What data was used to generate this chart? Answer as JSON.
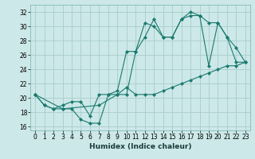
{
  "xlabel": "Humidex (Indice chaleur)",
  "ylabel": "",
  "xlim": [
    -0.5,
    23.5
  ],
  "ylim": [
    15.5,
    33
  ],
  "yticks": [
    16,
    18,
    20,
    22,
    24,
    26,
    28,
    30,
    32
  ],
  "xticks": [
    0,
    1,
    2,
    3,
    4,
    5,
    6,
    7,
    8,
    9,
    10,
    11,
    12,
    13,
    14,
    15,
    16,
    17,
    18,
    19,
    20,
    21,
    22,
    23
  ],
  "background_color": "#cce8e8",
  "grid_color": "#aacccc",
  "line_color": "#1a7a6e",
  "series": [
    {
      "x": [
        0,
        1,
        2,
        3,
        4,
        5,
        6,
        7,
        8,
        9,
        10,
        11,
        12,
        13,
        14,
        15,
        16,
        17,
        18,
        19,
        20,
        21,
        22,
        23
      ],
      "y": [
        20.5,
        19.0,
        18.5,
        19.0,
        19.5,
        19.5,
        17.5,
        20.5,
        20.5,
        21.0,
        26.5,
        26.5,
        28.5,
        31.0,
        28.5,
        28.5,
        31.0,
        31.5,
        31.5,
        30.5,
        30.5,
        28.5,
        25.0,
        25.0
      ]
    },
    {
      "x": [
        0,
        1,
        2,
        3,
        4,
        5,
        6,
        7,
        8,
        9,
        10,
        11,
        12,
        13,
        14,
        15,
        16,
        17,
        18,
        19,
        20,
        21,
        22,
        23
      ],
      "y": [
        20.5,
        19.0,
        18.5,
        18.5,
        18.5,
        17.0,
        16.5,
        16.5,
        20.5,
        20.5,
        20.5,
        26.5,
        30.5,
        30.0,
        28.5,
        28.5,
        31.0,
        32.0,
        31.5,
        24.5,
        30.5,
        28.5,
        27.0,
        25.0
      ]
    },
    {
      "x": [
        0,
        3,
        7,
        9,
        10,
        11,
        12,
        13,
        14,
        15,
        16,
        17,
        18,
        19,
        20,
        21,
        22,
        23
      ],
      "y": [
        20.5,
        18.5,
        19.0,
        20.5,
        21.5,
        20.5,
        20.5,
        20.5,
        21.0,
        21.5,
        22.0,
        22.5,
        23.0,
        23.5,
        24.0,
        24.5,
        24.5,
        25.0
      ]
    }
  ]
}
